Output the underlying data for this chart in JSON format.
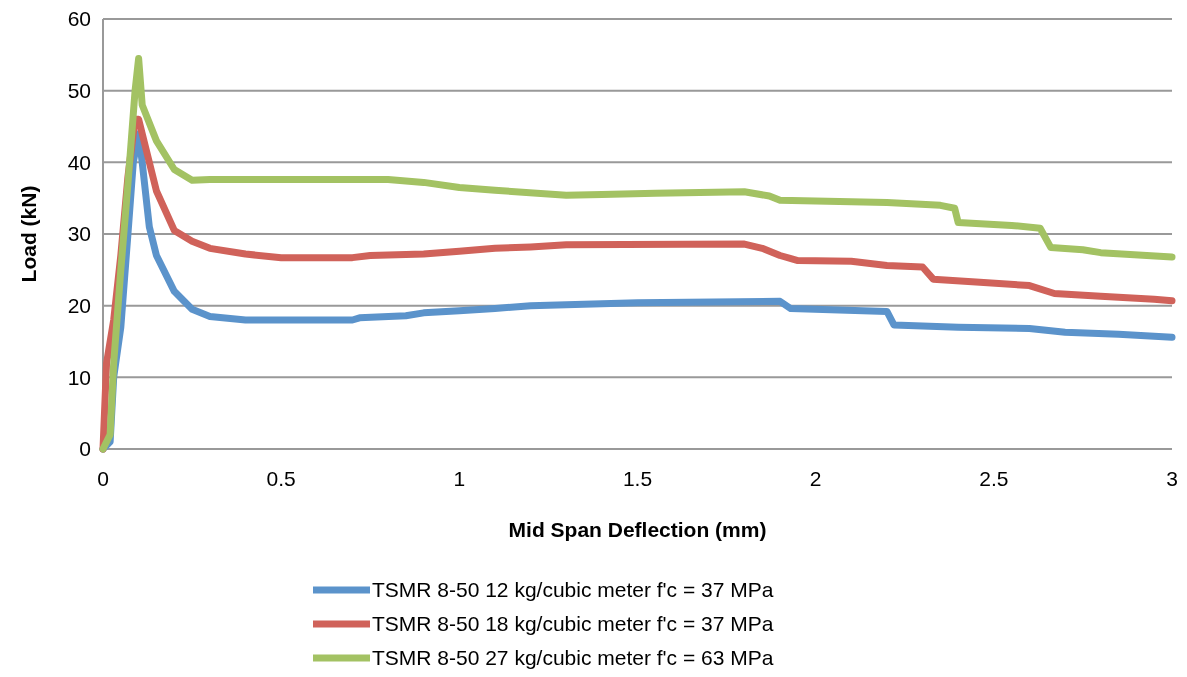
{
  "chart_data": {
    "type": "line",
    "xlabel": "Mid Span Deflection (mm)",
    "ylabel": "Load (kN)",
    "xlim": [
      0,
      3
    ],
    "xticks": [
      0,
      0.5,
      1,
      1.5,
      2,
      2.5,
      3
    ],
    "ylim": [
      0,
      60
    ],
    "yticks": [
      0,
      10,
      20,
      30,
      40,
      50,
      60
    ],
    "grid": "y",
    "legend": "bottom",
    "marker": "none",
    "line_style": "solid",
    "series": [
      {
        "name": "TSMR 8-50 12 kg/cubic meter f'c = 37 MPa",
        "color": "#5b93cb",
        "x": [
          0,
          0.02,
          0.03,
          0.05,
          0.07,
          0.085,
          0.1,
          0.11,
          0.13,
          0.15,
          0.2,
          0.25,
          0.3,
          0.4,
          0.7,
          0.72,
          0.85,
          0.9,
          1.0,
          1.1,
          1.2,
          1.5,
          1.9,
          1.93,
          2.2,
          2.22,
          2.4,
          2.6,
          2.7,
          2.85,
          3
        ],
        "values": [
          0,
          1,
          10,
          17,
          30,
          40,
          44,
          40,
          31,
          27,
          22,
          19.5,
          18.5,
          18,
          18,
          18.3,
          18.6,
          19,
          19.3,
          19.6,
          20,
          20.4,
          20.6,
          19.6,
          19.2,
          17.3,
          17,
          16.8,
          16.3,
          16,
          15.6
        ]
      },
      {
        "name": "TSMR 8-50 18 kg/cubic meter f'c = 37 MPa",
        "color": "#d0625a",
        "x": [
          0,
          0.01,
          0.03,
          0.05,
          0.07,
          0.09,
          0.1,
          0.12,
          0.15,
          0.2,
          0.25,
          0.3,
          0.4,
          0.5,
          0.7,
          0.75,
          0.9,
          1.0,
          1.1,
          1.2,
          1.3,
          1.8,
          1.85,
          1.9,
          1.95,
          2.1,
          2.2,
          2.3,
          2.33,
          2.45,
          2.6,
          2.67,
          2.8,
          2.95,
          3
        ],
        "values": [
          0,
          12,
          18,
          27,
          38,
          46,
          46,
          42,
          36,
          30.5,
          29,
          28,
          27.2,
          26.7,
          26.7,
          27,
          27.2,
          27.6,
          28,
          28.2,
          28.5,
          28.6,
          28,
          27,
          26.3,
          26.2,
          25.6,
          25.4,
          23.7,
          23.3,
          22.8,
          21.7,
          21.3,
          20.9,
          20.7
        ]
      },
      {
        "name": "TSMR 8-50 27 kg/cubic meter f'c = 63 MPa",
        "color": "#a3c263",
        "x": [
          0,
          0.02,
          0.03,
          0.05,
          0.07,
          0.09,
          0.1,
          0.11,
          0.15,
          0.2,
          0.25,
          0.3,
          0.8,
          0.9,
          1.0,
          1.1,
          1.3,
          1.4,
          1.55,
          1.8,
          1.87,
          1.9,
          2.2,
          2.35,
          2.39,
          2.4,
          2.55,
          2.63,
          2.66,
          2.75,
          2.8,
          3
        ],
        "values": [
          0,
          2,
          12,
          25,
          37,
          50,
          54.5,
          48,
          43,
          39,
          37.5,
          37.6,
          37.6,
          37.2,
          36.5,
          36.1,
          35.4,
          35.5,
          35.7,
          35.9,
          35.3,
          34.7,
          34.4,
          34,
          33.6,
          31.6,
          31.2,
          30.8,
          28.1,
          27.8,
          27.4,
          26.8
        ]
      }
    ]
  }
}
